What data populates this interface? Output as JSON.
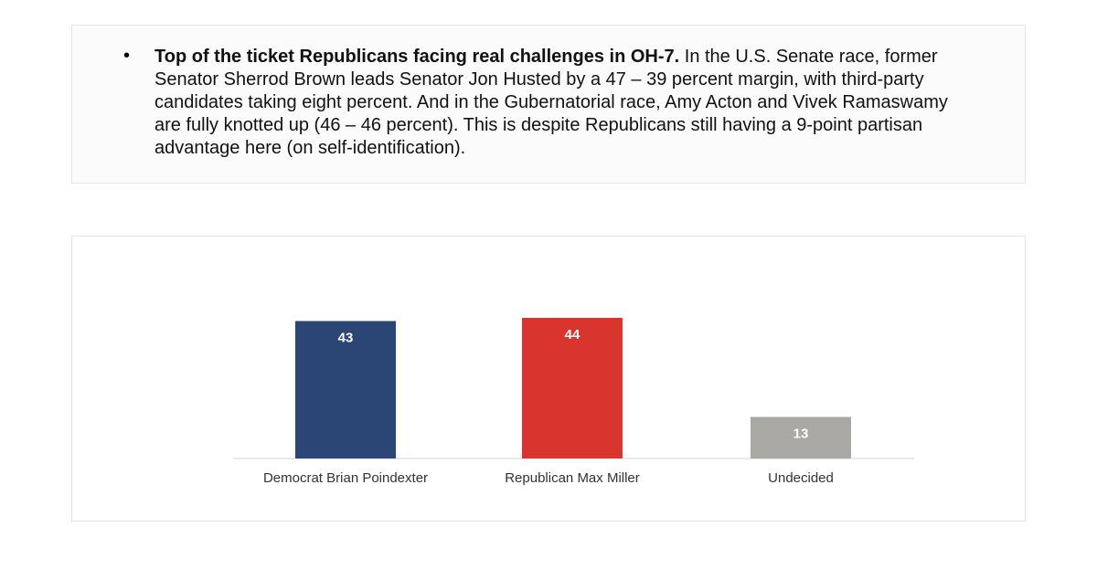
{
  "bullet": {
    "lead": "Top of the ticket Republicans facing real challenges in OH-7.",
    "text": "In the U.S. Senate race, former Senator Sherrod Brown leads Senator Jon Husted by a 47 – 39 percent margin, with third-party candidates taking eight percent. And in the Gubernatorial race, Amy Acton and Vivek Ramaswamy are fully knotted up (46 – 46 percent). This is despite Republicans still having a 9-point partisan advantage here (on self-identification)."
  },
  "chart_data": {
    "type": "bar",
    "categories": [
      "Democrat Brian Poindexter",
      "Republican Max Miller",
      "Undecided"
    ],
    "values": [
      43,
      44,
      13
    ],
    "colors": [
      "#2b4674",
      "#d9342e",
      "#aaa8a4"
    ]
  }
}
